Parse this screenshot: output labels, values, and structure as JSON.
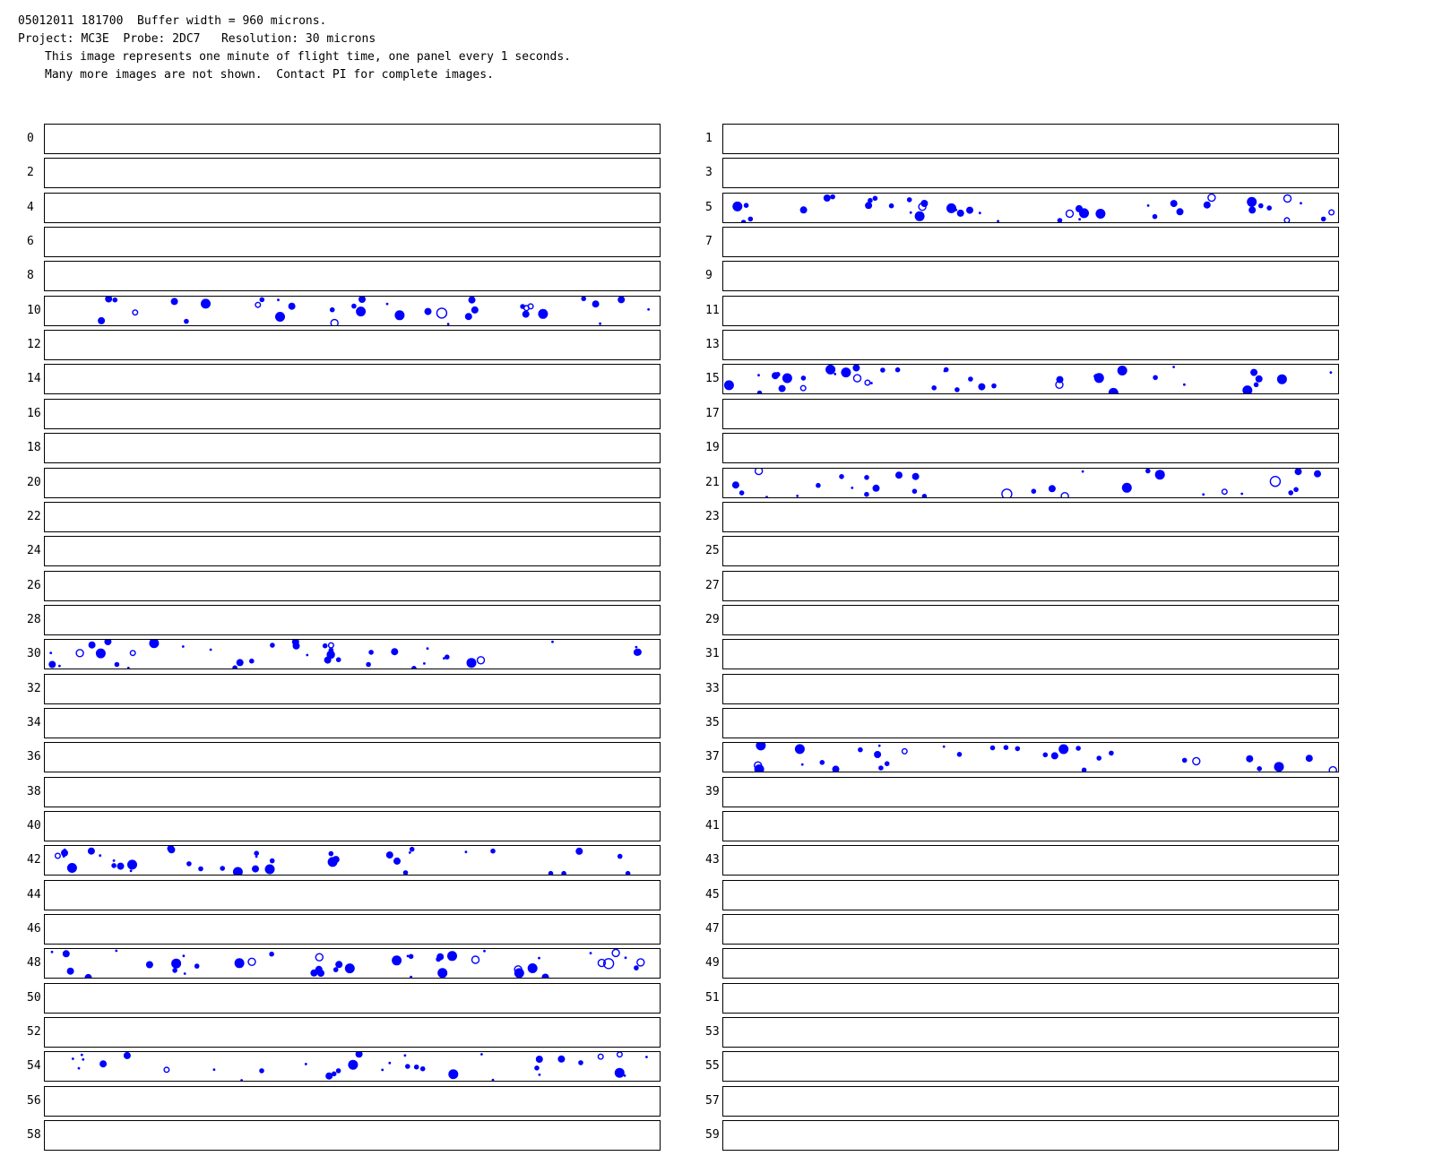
{
  "header": {
    "line1": "05012011 181700  Buffer width = 960 microns.",
    "line2": "Project: MC3E  Probe: 2DC7   Resolution: 30 microns",
    "line3": "This image represents one minute of flight time, one panel every 1 seconds.",
    "line4": "Many more images are not shown.  Contact PI for complete images."
  },
  "particle_color": "#0000ff",
  "panel_labels": [
    "0",
    "1",
    "2",
    "3",
    "4",
    "5",
    "6",
    "7",
    "8",
    "9",
    "10",
    "11",
    "12",
    "13",
    "14",
    "15",
    "16",
    "17",
    "18",
    "19",
    "20",
    "21",
    "22",
    "23",
    "24",
    "25",
    "26",
    "27",
    "28",
    "29",
    "30",
    "31",
    "32",
    "33",
    "34",
    "35",
    "36",
    "37",
    "38",
    "39",
    "40",
    "41",
    "42",
    "43",
    "44",
    "45",
    "46",
    "47",
    "48",
    "49",
    "50",
    "51",
    "52",
    "53",
    "54",
    "55",
    "56",
    "57",
    "58",
    "59"
  ],
  "panels_with_particles": [
    "5",
    "10",
    "15",
    "21",
    "30",
    "37",
    "42",
    "48",
    "54"
  ]
}
